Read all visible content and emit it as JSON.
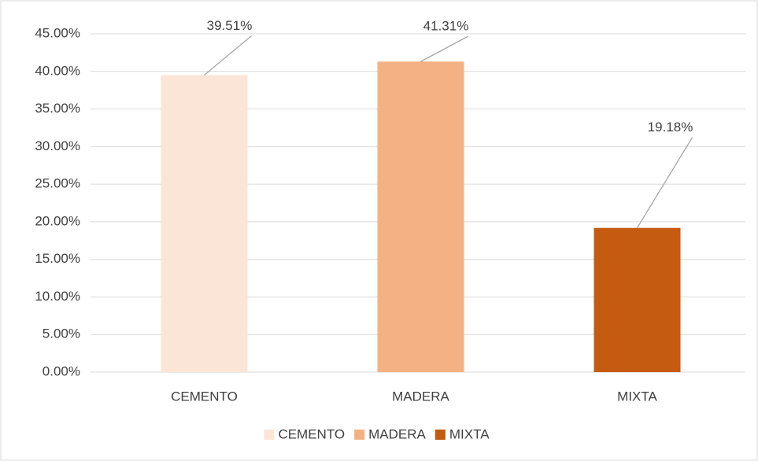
{
  "chart_data": {
    "type": "bar",
    "categories": [
      "CEMENTO",
      "MADERA",
      "MIXTA"
    ],
    "values": [
      39.51,
      41.31,
      19.18
    ],
    "value_labels": [
      "39.51%",
      "41.31%",
      "19.18%"
    ],
    "colors": [
      "#fbe5d6",
      "#f4b183",
      "#c55a11"
    ],
    "ylim": [
      0,
      45
    ],
    "yticks": [
      {
        "value": 0,
        "label": "0.00%"
      },
      {
        "value": 5,
        "label": "5.00%"
      },
      {
        "value": 10,
        "label": "10.00%"
      },
      {
        "value": 15,
        "label": "15.00%"
      },
      {
        "value": 20,
        "label": "20.00%"
      },
      {
        "value": 25,
        "label": "25.00%"
      },
      {
        "value": 30,
        "label": "30.00%"
      },
      {
        "value": 35,
        "label": "35.00%"
      },
      {
        "value": 40,
        "label": "40.00%"
      },
      {
        "value": 45,
        "label": "45.00%"
      }
    ],
    "grid": true,
    "legend": "bottom"
  }
}
